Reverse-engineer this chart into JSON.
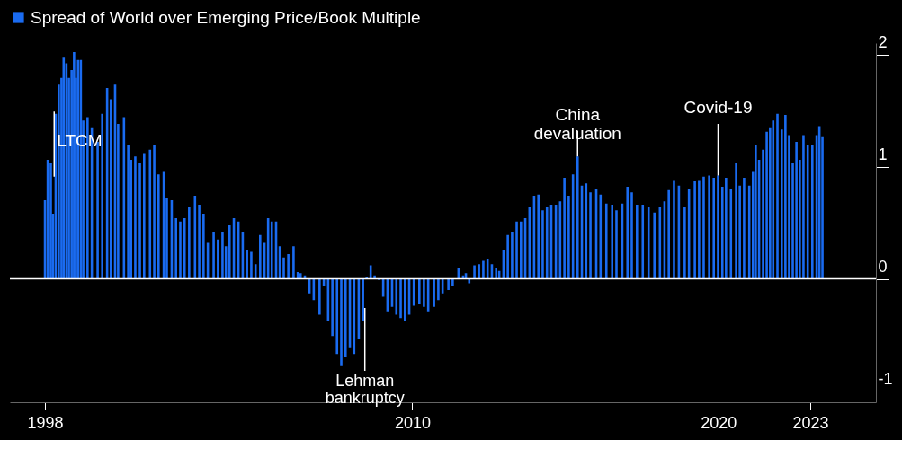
{
  "chart_data": {
    "type": "bar",
    "legend": "top left",
    "xlim": [
      1997,
      2025
    ],
    "xticks": [
      1998,
      2010,
      2020,
      2023
    ],
    "ylim": [
      -1.1,
      2.1
    ],
    "yticks": [
      -1,
      0,
      1,
      2
    ],
    "series": [
      {
        "name": "Spread of World over Emerging Price/Book Multiple",
        "color": "#1a6bf0",
        "x": [
          1998.0,
          1998.09,
          1998.19,
          1998.26,
          1998.35,
          1998.45,
          1998.54,
          1998.61,
          1998.7,
          1998.78,
          1998.87,
          1998.95,
          1999.01,
          1999.08,
          1999.17,
          1999.25,
          1999.39,
          1999.53,
          1999.72,
          1999.87,
          2000.03,
          2000.15,
          2000.29,
          2000.39,
          2000.58,
          2000.72,
          2000.81,
          2000.95,
          2001.1,
          2001.24,
          2001.43,
          2001.57,
          2001.71,
          2001.88,
          2001.98,
          2002.14,
          2002.28,
          2002.42,
          2002.56,
          2002.71,
          2002.9,
          2003.04,
          2003.18,
          2003.32,
          2003.51,
          2003.65,
          2003.8,
          2003.91,
          2004.03,
          2004.17,
          2004.32,
          2004.46,
          2004.6,
          2004.74,
          2004.88,
          2005.03,
          2005.17,
          2005.29,
          2005.41,
          2005.55,
          2005.67,
          2005.8,
          2005.95,
          2006.12,
          2006.26,
          2006.35,
          2006.49,
          2006.64,
          2006.78,
          2006.97,
          2007.11,
          2007.25,
          2007.39,
          2007.54,
          2007.68,
          2007.82,
          2007.96,
          2008.1,
          2008.25,
          2008.39,
          2008.51,
          2008.64,
          2008.77,
          2008.91,
          2009.05,
          2009.19,
          2009.34,
          2009.48,
          2009.62,
          2009.76,
          2009.9,
          2010.05,
          2010.23,
          2010.38,
          2010.52,
          2010.71,
          2010.85,
          2010.99,
          2011.18,
          2011.32,
          2011.51,
          2011.66,
          2011.75,
          2011.86,
          2012.03,
          2012.18,
          2012.32,
          2012.46,
          2012.6,
          2012.74,
          2012.84,
          2012.98,
          2013.12,
          2013.26,
          2013.41,
          2013.55,
          2013.69,
          2013.83,
          2013.98,
          2014.12,
          2014.26,
          2014.4,
          2014.54,
          2014.69,
          2014.83,
          2014.97,
          2015.11,
          2015.25,
          2015.4,
          2015.54,
          2015.68,
          2015.82,
          2016.01,
          2016.15,
          2016.34,
          2016.53,
          2016.67,
          2016.86,
          2017.03,
          2017.17,
          2017.34,
          2017.53,
          2017.72,
          2017.91,
          2018.09,
          2018.24,
          2018.38,
          2018.55,
          2018.71,
          2018.9,
          2019.04,
          2019.23,
          2019.37,
          2019.52,
          2019.7,
          2019.85,
          2019.99,
          2020.13,
          2020.25,
          2020.41,
          2020.58,
          2020.7,
          2020.84,
          2021.01,
          2021.13,
          2021.22,
          2021.33,
          2021.46,
          2021.58,
          2021.69,
          2021.79,
          2021.93,
          2022.07,
          2022.19,
          2022.31,
          2022.43,
          2022.55,
          2022.66,
          2022.78,
          2022.92,
          2023.07,
          2023.21,
          2023.3,
          2023.4
        ],
        "values": [
          0.7,
          1.06,
          1.03,
          0.58,
          1.47,
          1.73,
          1.79,
          1.97,
          1.92,
          1.79,
          1.86,
          2.02,
          1.79,
          1.95,
          1.95,
          1.41,
          1.44,
          1.35,
          1.22,
          1.47,
          1.7,
          1.6,
          1.73,
          1.38,
          1.44,
          1.19,
          1.06,
          1.09,
          1.03,
          1.12,
          1.15,
          1.19,
          0.93,
          0.96,
          0.72,
          0.7,
          0.54,
          0.51,
          0.54,
          0.64,
          0.74,
          0.66,
          0.58,
          0.32,
          0.42,
          0.35,
          0.42,
          0.29,
          0.48,
          0.54,
          0.51,
          0.42,
          0.26,
          0.24,
          0.13,
          0.39,
          0.32,
          0.54,
          0.51,
          0.51,
          0.29,
          0.19,
          0.22,
          0.29,
          0.06,
          0.05,
          0.03,
          -0.13,
          -0.19,
          -0.32,
          -0.06,
          -0.38,
          -0.51,
          -0.67,
          -0.77,
          -0.7,
          -0.61,
          -0.67,
          -0.54,
          -0.38,
          0.02,
          0.12,
          0.03,
          -0.01,
          -0.16,
          -0.29,
          -0.25,
          -0.32,
          -0.35,
          -0.38,
          -0.32,
          -0.24,
          -0.22,
          -0.25,
          -0.29,
          -0.25,
          -0.19,
          -0.13,
          -0.1,
          -0.06,
          0.1,
          0.03,
          0.05,
          -0.04,
          0.12,
          0.13,
          0.16,
          0.18,
          0.13,
          0.1,
          0.07,
          0.26,
          0.39,
          0.42,
          0.51,
          0.51,
          0.54,
          0.64,
          0.74,
          0.75,
          0.61,
          0.64,
          0.66,
          0.66,
          0.69,
          0.9,
          0.74,
          0.93,
          1.09,
          0.83,
          0.85,
          0.77,
          0.8,
          0.75,
          0.67,
          0.66,
          0.61,
          0.67,
          0.82,
          0.77,
          0.66,
          0.66,
          0.64,
          0.59,
          0.64,
          0.69,
          0.79,
          0.88,
          0.83,
          0.64,
          0.8,
          0.87,
          0.88,
          0.91,
          0.92,
          0.9,
          0.92,
          0.82,
          0.9,
          0.8,
          1.03,
          0.83,
          0.9,
          0.83,
          0.96,
          1.19,
          1.06,
          1.15,
          1.31,
          1.35,
          1.41,
          1.47,
          1.33,
          1.46,
          1.28,
          1.03,
          1.22,
          1.06,
          1.28,
          1.19,
          1.19,
          1.28,
          1.36,
          1.27
        ]
      }
    ],
    "ref_lines": [
      {
        "axis": "y",
        "value": 0,
        "color": "#ffffff"
      }
    ],
    "annotations": [
      {
        "text": "LTCM",
        "x": 1998.3,
        "y": 0.91
      },
      {
        "text": "Lehman bankruptcy",
        "x": 2008.45,
        "y": -0.26
      },
      {
        "text": "China devaluation",
        "x": 2015.4,
        "y": 1.09
      },
      {
        "text": "Covid-19",
        "x": 2019.99,
        "y": 0.92
      }
    ]
  }
}
